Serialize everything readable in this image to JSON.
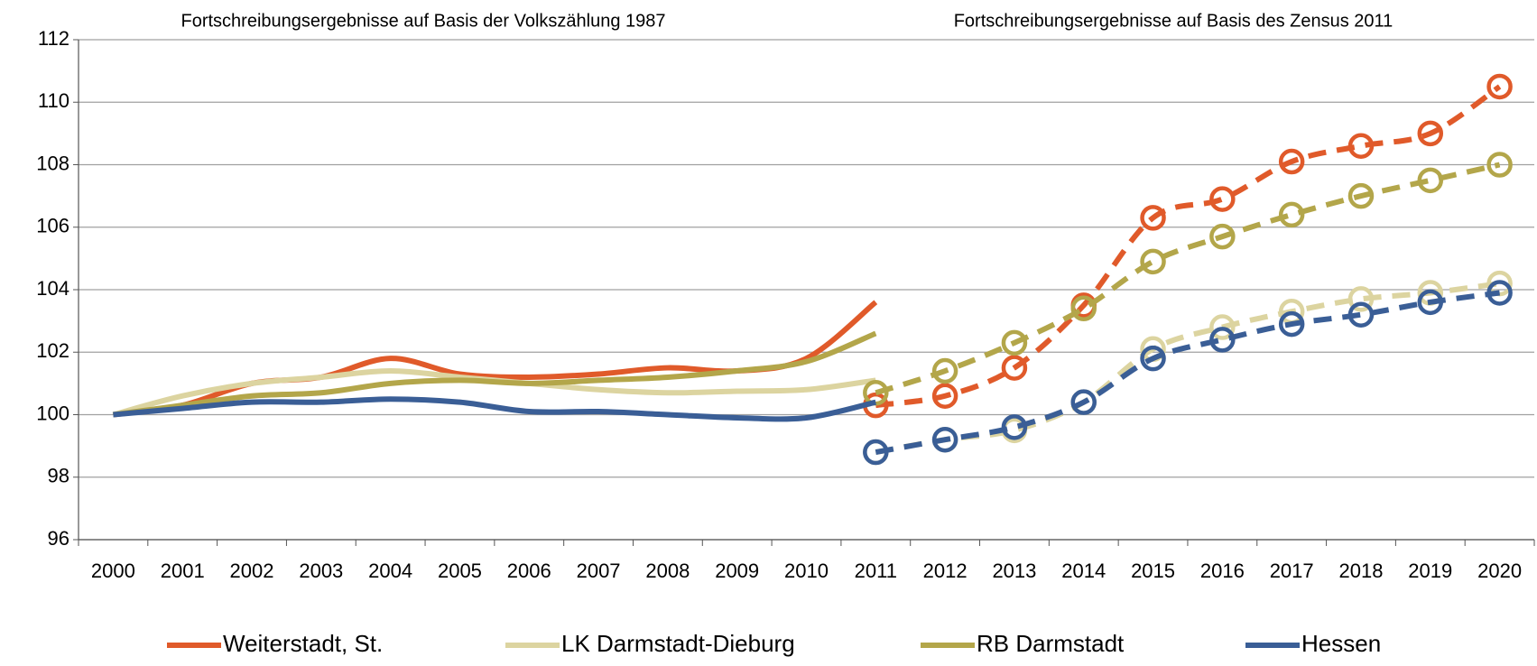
{
  "chart_data": {
    "type": "line",
    "annotations": [
      "Fortschreibungsergebnisse auf Basis der Volkszählung 1987",
      "Fortschreibungsergebnisse auf Basis des Zensus 2011"
    ],
    "categories": [
      "2000",
      "2001",
      "2002",
      "2003",
      "2004",
      "2005",
      "2006",
      "2007",
      "2008",
      "2009",
      "2010",
      "2011",
      "2012",
      "2013",
      "2014",
      "2015",
      "2016",
      "2017",
      "2018",
      "2019",
      "2020"
    ],
    "ylim": [
      96,
      112
    ],
    "yticks": [
      96,
      98,
      100,
      102,
      104,
      106,
      108,
      110,
      112
    ],
    "grid": true,
    "smooth": true,
    "legend": "bottom",
    "series": [
      {
        "name": "Weiterstadt, St.",
        "color": "#e05a2a",
        "values": [
          100,
          100.3,
          101.0,
          101.2,
          101.8,
          101.3,
          101.2,
          101.3,
          101.5,
          101.4,
          101.8,
          103.6,
          null,
          null,
          null,
          null,
          null,
          null,
          null,
          null,
          null
        ],
        "census_values": [
          null,
          null,
          null,
          null,
          null,
          null,
          null,
          null,
          null,
          null,
          null,
          100.3,
          100.6,
          101.5,
          103.5,
          106.3,
          106.9,
          108.1,
          108.6,
          109.0,
          110.5
        ]
      },
      {
        "name": "LK Darmstadt-Dieburg",
        "color": "#dcd4a0",
        "values": [
          100,
          100.6,
          101.0,
          101.2,
          101.4,
          101.2,
          101.0,
          100.8,
          100.7,
          100.75,
          100.8,
          101.1,
          null,
          null,
          null,
          null,
          null,
          null,
          null,
          null,
          null
        ],
        "census_values": [
          null,
          null,
          null,
          null,
          null,
          null,
          null,
          null,
          null,
          null,
          null,
          98.8,
          99.2,
          99.5,
          100.4,
          102.1,
          102.8,
          103.3,
          103.7,
          103.9,
          104.2
        ]
      },
      {
        "name": "RB Darmstadt",
        "color": "#b3a64a",
        "values": [
          100,
          100.3,
          100.6,
          100.7,
          101.0,
          101.1,
          101.0,
          101.1,
          101.2,
          101.4,
          101.7,
          102.6,
          null,
          null,
          null,
          null,
          null,
          null,
          null,
          null,
          null
        ],
        "census_values": [
          null,
          null,
          null,
          null,
          null,
          null,
          null,
          null,
          null,
          null,
          null,
          100.7,
          101.4,
          102.3,
          103.4,
          104.9,
          105.7,
          106.4,
          107.0,
          107.5,
          108.0
        ]
      },
      {
        "name": "Hessen",
        "color": "#3a5e96",
        "values": [
          100,
          100.2,
          100.4,
          100.4,
          100.5,
          100.4,
          100.1,
          100.1,
          100.0,
          99.9,
          99.9,
          100.4,
          null,
          null,
          null,
          null,
          null,
          null,
          null,
          null,
          null
        ],
        "census_values": [
          null,
          null,
          null,
          null,
          null,
          null,
          null,
          null,
          null,
          null,
          null,
          98.8,
          99.2,
          99.6,
          100.4,
          101.8,
          102.4,
          102.9,
          103.2,
          103.6,
          103.9
        ]
      }
    ]
  }
}
